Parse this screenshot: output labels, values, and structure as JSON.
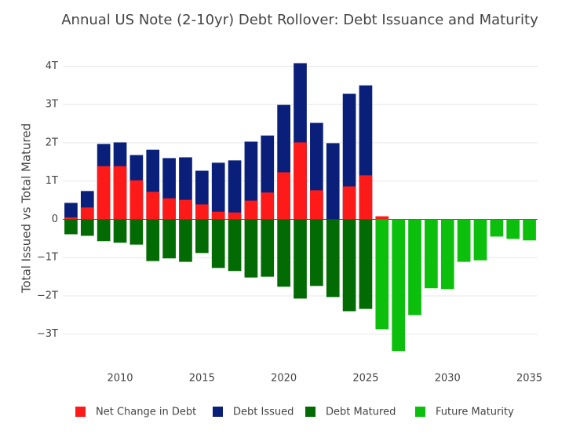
{
  "chart_data": {
    "type": "bar",
    "barmode": "overlay",
    "title": "Annual US Note (2-10yr) Debt Rollover: Debt Issuance and Maturity",
    "y_label": "Total Issued vs Total Matured",
    "x": [
      2007,
      2008,
      2009,
      2010,
      2011,
      2012,
      2013,
      2014,
      2015,
      2016,
      2017,
      2018,
      2019,
      2020,
      2021,
      2022,
      2023,
      2024,
      2025,
      2026,
      2027,
      2028,
      2029,
      2030,
      2031,
      2032,
      2033,
      2034,
      2035
    ],
    "series": [
      {
        "name": "Debt Issued",
        "color": "#0a1f7a",
        "values": [
          0.43,
          0.74,
          1.97,
          2.01,
          1.68,
          1.82,
          1.6,
          1.62,
          1.27,
          1.48,
          1.54,
          2.03,
          2.19,
          2.99,
          4.08,
          2.52,
          1.99,
          3.28,
          3.5,
          null,
          null,
          null,
          null,
          null,
          null,
          null,
          null,
          null,
          null
        ]
      },
      {
        "name": "Net Change in Debt",
        "color": "#ff1a1a",
        "values": [
          0.05,
          0.31,
          1.39,
          1.39,
          1.02,
          0.72,
          0.55,
          0.51,
          0.39,
          0.2,
          0.18,
          0.49,
          0.7,
          1.23,
          2.01,
          0.76,
          -0.03,
          0.86,
          1.15,
          0.08,
          null,
          null,
          null,
          null,
          null,
          null,
          null,
          null,
          null
        ]
      },
      {
        "name": "Debt Matured",
        "color": "#036b03",
        "values": [
          -0.39,
          -0.43,
          -0.57,
          -0.61,
          -0.66,
          -1.09,
          -1.02,
          -1.11,
          -0.88,
          -1.27,
          -1.35,
          -1.52,
          -1.5,
          -1.76,
          -2.07,
          -1.74,
          -2.03,
          -2.4,
          -2.34,
          null,
          null,
          null,
          null,
          null,
          null,
          null,
          null,
          null,
          null
        ]
      },
      {
        "name": "Future Maturity",
        "color": "#0cbf0c",
        "values": [
          null,
          null,
          null,
          null,
          null,
          null,
          null,
          null,
          null,
          null,
          null,
          null,
          null,
          null,
          null,
          null,
          null,
          null,
          null,
          -2.87,
          -3.44,
          -2.5,
          -1.8,
          -1.82,
          -1.11,
          -1.07,
          -0.45,
          -0.51,
          -0.55
        ]
      }
    ],
    "legend_order": [
      1,
      0,
      2,
      3
    ],
    "xlim": [
      2006.5,
      2035.5
    ],
    "xticks": [
      2010,
      2015,
      2020,
      2025,
      2030,
      2035
    ],
    "ylim": [
      -3.6,
      4.5
    ],
    "yticks": [
      {
        "value": -3,
        "label": "−3T"
      },
      {
        "value": -2,
        "label": "−2T"
      },
      {
        "value": -1,
        "label": "−1T"
      },
      0,
      {
        "value": 1,
        "label": "1T"
      },
      {
        "value": 2,
        "label": "2T"
      },
      {
        "value": 3,
        "label": "3T"
      },
      {
        "value": 4,
        "label": "4T"
      }
    ],
    "grid": true,
    "legend_position": "bottom"
  }
}
